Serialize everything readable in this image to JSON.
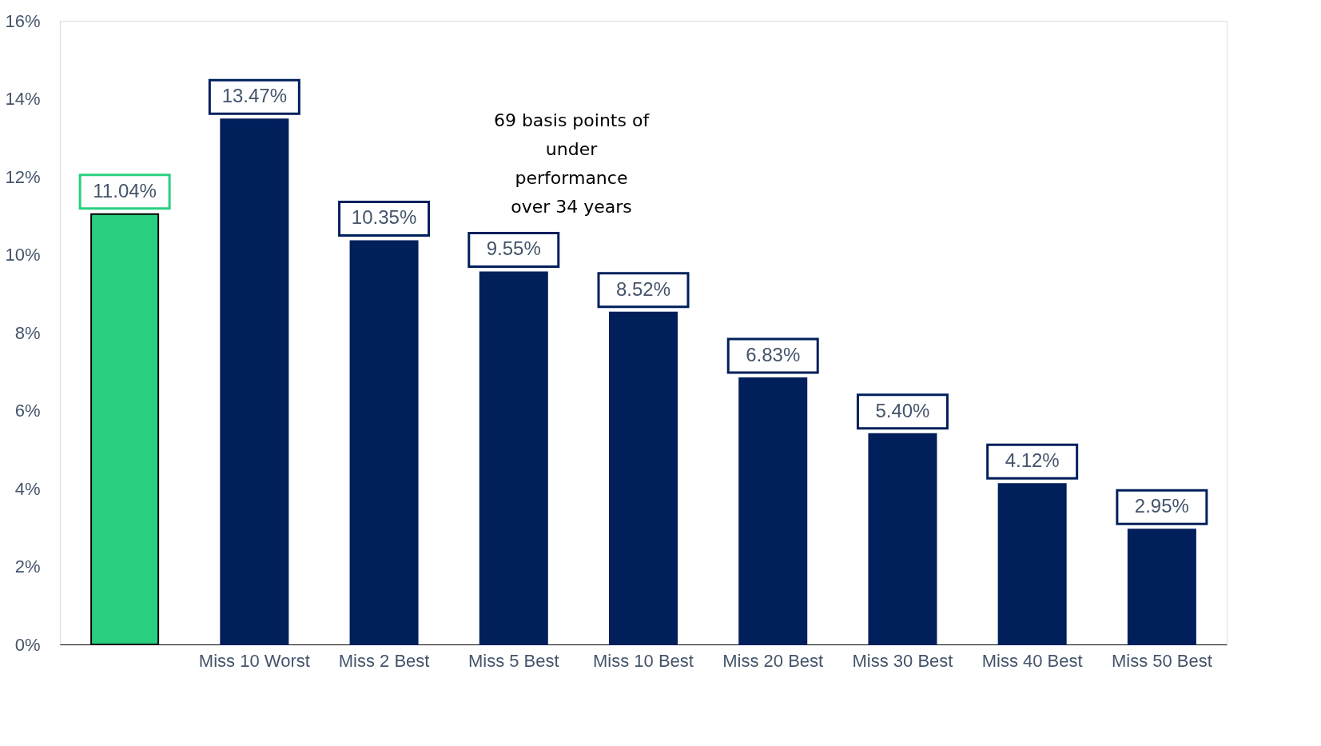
{
  "chart_data": {
    "type": "bar",
    "categories": [
      null,
      "Miss 10 Worst",
      "Miss 2 Best",
      "Miss 5 Best",
      "Miss 10 Best",
      "Miss 20 Best",
      "Miss 30 Best",
      "Miss 40 Best",
      "Miss 50 Best"
    ],
    "values": [
      11.04,
      13.47,
      10.35,
      9.55,
      8.52,
      6.83,
      5.4,
      4.12,
      2.95
    ],
    "colors": [
      "#29cf7f",
      "#001f5b",
      "#001f5b",
      "#001f5b",
      "#001f5b",
      "#001f5b",
      "#001f5b",
      "#001f5b",
      "#001f5b"
    ],
    "value_labels": [
      "11.04%",
      "13.47%",
      "10.35%",
      "9.55%",
      "8.52%",
      "6.83%",
      "5.40%",
      "4.12%",
      "2.95%"
    ],
    "ylim": [
      0,
      16
    ],
    "yticks": [
      {
        "value": 0,
        "label": "0%"
      },
      {
        "value": 2,
        "label": "2%"
      },
      {
        "value": 4,
        "label": "4%"
      },
      {
        "value": 6,
        "label": "6%"
      },
      {
        "value": 8,
        "label": "8%"
      },
      {
        "value": 10,
        "label": "10%"
      },
      {
        "value": 12,
        "label": "12%"
      },
      {
        "value": 14,
        "label": "14%"
      },
      {
        "value": 16,
        "label": "16%"
      }
    ],
    "grid": false,
    "annotations": [
      "69 basis points of\nunder\nperformance\nover 34 years"
    ]
  }
}
